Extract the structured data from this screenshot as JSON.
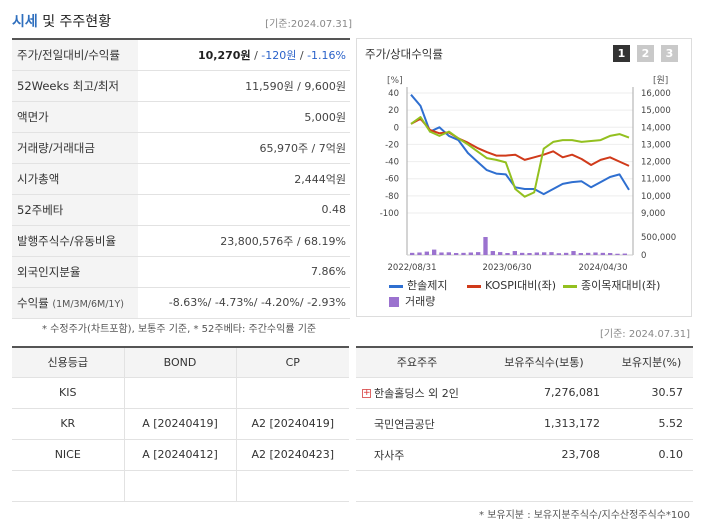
{
  "header": {
    "title_accent": "시세",
    "title_rest": "및 주주현황",
    "date": "[기준:2024.07.31]"
  },
  "quote": {
    "price_label": "주가/전일대비/수익률",
    "price": "10,270원",
    "sep": " / ",
    "change": "-120원",
    "change_rate": "-1.16%",
    "w52_label": "52Weeks 최고/최저",
    "w52_value": "11,590원 / 9,600원",
    "face_label": "액면가",
    "face_value": "5,000원",
    "volume_label": "거래량/거래대금",
    "volume_value": "65,970주 / 7억원",
    "mcap_label": "시가총액",
    "mcap_value": "2,444억원",
    "beta_label": "52주베타",
    "beta_value": "0.48",
    "shares_label": "발행주식수/유동비율",
    "shares_value": "23,800,576주 / 68.19%",
    "foreign_label": "외국인지분율",
    "foreign_value": "7.86%",
    "return_label": "수익률",
    "return_sub": "(1M/3M/6M/1Y)",
    "return_value": "-8.63%/ -4.73%/ -4.20%/ -2.93%"
  },
  "notes": {
    "left": "* 수정주가(차트포함), 보통주 기준, * 52주베타: 주간수익률 기준",
    "right_date": "[기준: 2024.07.31]",
    "bottom": "* 보유지분 : 보유지분주식수/지수산정주식수*100"
  },
  "chart_panel": {
    "title": "주가/상대수익률",
    "tabs": [
      "1",
      "2",
      "3"
    ]
  },
  "chart_data": {
    "type": "line",
    "left_unit": "[%]",
    "right_unit": "[원]",
    "left_ticks": [
      "40",
      "20",
      "0",
      "-20",
      "-40",
      "-60",
      "-80",
      "-100"
    ],
    "right_ticks": [
      "16,000",
      "15,000",
      "14,000",
      "13,000",
      "12,000",
      "11,000",
      "10,000",
      "9,000"
    ],
    "volume_ticks": [
      "500,000",
      "0"
    ],
    "x_ticks": [
      "2022/08/31",
      "2023/06/30",
      "2024/04/30"
    ],
    "ylim_left": [
      -100,
      40
    ],
    "ylim_right": [
      9000,
      16000
    ],
    "volume_max": 500000,
    "series": [
      {
        "name": "한솔제지",
        "color": "#2f6fd0",
        "values": [
          38,
          25,
          -5,
          0,
          -10,
          -15,
          -30,
          -40,
          -50,
          -54,
          -55,
          -70,
          -72,
          -72,
          -78,
          -72,
          -66,
          -64,
          -63,
          -70,
          -64,
          -58,
          -55,
          -73
        ]
      },
      {
        "name": "KOSPI대비(좌)",
        "color": "#d03a1a",
        "values": [
          4,
          10,
          -3,
          -7,
          -6,
          -13,
          -18,
          -24,
          -29,
          -33,
          -33,
          -32,
          -38,
          -35,
          -32,
          -28,
          -35,
          -32,
          -37,
          -44,
          -38,
          -35,
          -40,
          -45
        ]
      },
      {
        "name": "종이목재대비(좌)",
        "color": "#93c01f",
        "values": [
          4,
          12,
          -5,
          -10,
          -5,
          -13,
          -20,
          -28,
          -36,
          -38,
          -41,
          -72,
          -81,
          -76,
          -25,
          -17,
          -15,
          -15,
          -17,
          -16,
          -15,
          -10,
          -8,
          -12
        ]
      }
    ],
    "volume_series": {
      "name": "거래량",
      "color": "#9b72cf",
      "values": [
        60000,
        70000,
        95000,
        150000,
        70000,
        75000,
        55000,
        60000,
        70000,
        80000,
        500000,
        110000,
        80000,
        55000,
        110000,
        60000,
        55000,
        70000,
        75000,
        80000,
        50000,
        60000,
        110000,
        55000,
        60000,
        70000,
        60000,
        55000,
        35000,
        40000
      ]
    }
  },
  "credit": {
    "headers": [
      "신용등급",
      "BOND",
      "CP"
    ],
    "rows": [
      [
        "KIS",
        "",
        ""
      ],
      [
        "KR",
        "A [20240419]",
        "A2 [20240419]"
      ],
      [
        "NICE",
        "A [20240412]",
        "A2 [20240423]"
      ],
      [
        "",
        "",
        ""
      ]
    ]
  },
  "holders": {
    "headers": [
      "주요주주",
      "보유주식수(보통)",
      "보유지분(%)"
    ],
    "rows": [
      [
        "한솔홀딩스 외 2인",
        "7,276,081",
        "30.57"
      ],
      [
        "국민연금공단",
        "1,313,172",
        "5.52"
      ],
      [
        "자사주",
        "23,708",
        "0.10"
      ],
      [
        "",
        "",
        ""
      ]
    ]
  }
}
